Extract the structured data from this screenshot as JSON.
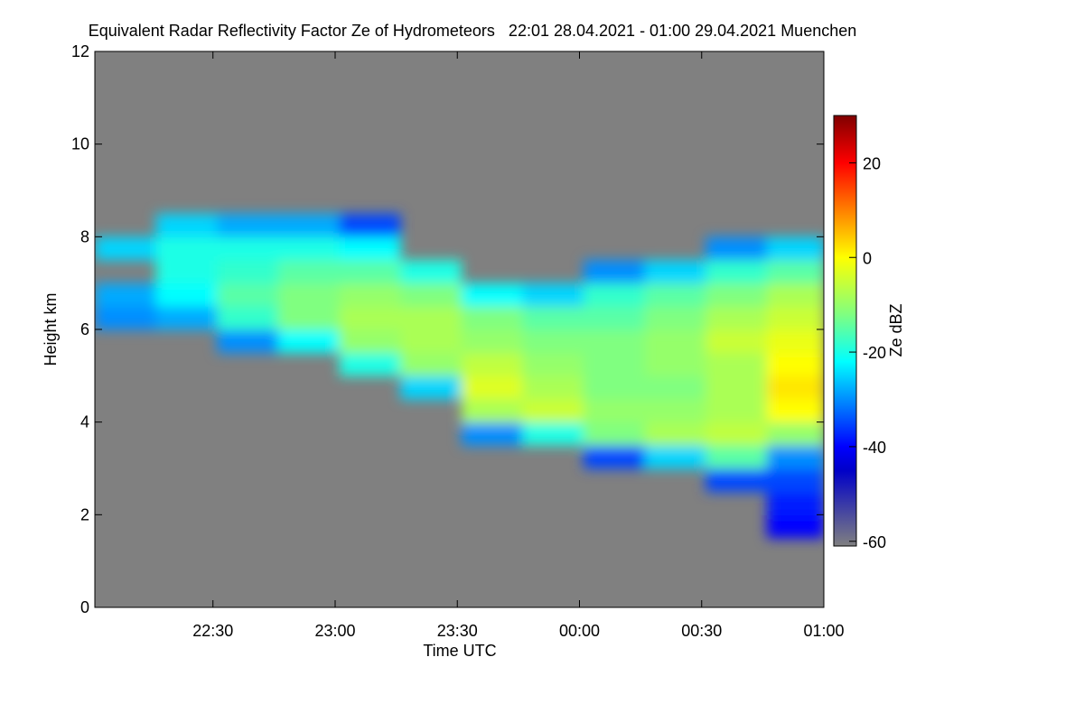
{
  "chart_data": {
    "type": "heatmap",
    "title": "Equivalent Radar Reflectivity Factor Ze of Hydrometeors   22:01 28.04.2021 - 01:00 29.04.2021 Muenchen",
    "x_label": "Time UTC",
    "y_label": "Height km",
    "colorbar_label": "Ze dBZ",
    "xlim": [
      1321,
      1500
    ],
    "xticks": [
      {
        "value": 1350,
        "label": "22:30"
      },
      {
        "value": 1380,
        "label": "23:00"
      },
      {
        "value": 1410,
        "label": "23:30"
      },
      {
        "value": 1440,
        "label": "00:00"
      },
      {
        "value": 1470,
        "label": "00:30"
      },
      {
        "value": 1500,
        "label": "01:00"
      }
    ],
    "ylim": [
      0,
      12
    ],
    "yticks": [
      0,
      2,
      4,
      6,
      8,
      10,
      12
    ],
    "x_bins": [
      1321,
      1336,
      1351,
      1366,
      1381,
      1396,
      1411,
      1426,
      1441,
      1456,
      1471,
      1486,
      1500
    ],
    "y_bins": [
      0,
      0.5,
      1,
      1.5,
      2,
      2.5,
      3,
      3.5,
      4,
      4.5,
      5,
      5.5,
      6,
      6.5,
      7,
      7.5,
      8,
      8.5,
      9,
      9.5,
      10,
      10.5,
      11,
      11.5,
      12
    ],
    "z": [
      [
        null,
        null,
        null,
        null,
        null,
        null,
        null,
        null,
        null,
        null,
        null,
        null
      ],
      [
        null,
        null,
        null,
        null,
        null,
        null,
        null,
        null,
        null,
        null,
        null,
        null
      ],
      [
        null,
        null,
        null,
        null,
        null,
        null,
        null,
        null,
        null,
        null,
        null,
        null
      ],
      [
        null,
        null,
        null,
        null,
        null,
        null,
        null,
        null,
        null,
        null,
        null,
        -40
      ],
      [
        null,
        null,
        null,
        null,
        null,
        null,
        null,
        null,
        null,
        null,
        null,
        -38
      ],
      [
        null,
        null,
        null,
        null,
        null,
        null,
        null,
        null,
        null,
        null,
        -35,
        -35
      ],
      [
        null,
        null,
        null,
        null,
        null,
        null,
        null,
        null,
        -35,
        -25,
        -15,
        -30
      ],
      [
        null,
        null,
        null,
        null,
        null,
        null,
        -30,
        -20,
        -12,
        -8,
        -6,
        -10
      ],
      [
        null,
        null,
        null,
        null,
        null,
        null,
        -8,
        -5,
        -10,
        -10,
        -8,
        0
      ],
      [
        null,
        null,
        null,
        null,
        null,
        -25,
        -3,
        -8,
        -12,
        -12,
        -8,
        2
      ],
      [
        null,
        null,
        null,
        null,
        -20,
        -10,
        -6,
        -10,
        -12,
        -10,
        -8,
        0
      ],
      [
        null,
        null,
        -30,
        -22,
        -10,
        -8,
        -10,
        -12,
        -12,
        -10,
        -5,
        -2
      ],
      [
        -30,
        -28,
        -18,
        -12,
        -8,
        -8,
        -12,
        -15,
        -15,
        -12,
        -8,
        -5
      ],
      [
        -28,
        -22,
        -15,
        -12,
        -10,
        -12,
        -22,
        -25,
        -18,
        -15,
        -12,
        -8
      ],
      [
        null,
        -20,
        -18,
        -15,
        -15,
        -20,
        null,
        null,
        -30,
        -25,
        -18,
        -15
      ],
      [
        -25,
        -20,
        -20,
        -20,
        -22,
        null,
        null,
        null,
        null,
        null,
        -30,
        -25
      ],
      [
        null,
        -25,
        -28,
        -28,
        -35,
        null,
        null,
        null,
        null,
        null,
        null,
        null
      ],
      [
        null,
        null,
        null,
        null,
        null,
        null,
        null,
        null,
        null,
        null,
        null,
        null
      ],
      [
        null,
        null,
        null,
        null,
        null,
        null,
        null,
        null,
        null,
        null,
        null,
        null
      ],
      [
        null,
        null,
        null,
        null,
        null,
        null,
        null,
        null,
        null,
        null,
        null,
        null
      ],
      [
        null,
        null,
        null,
        null,
        null,
        null,
        null,
        null,
        null,
        null,
        null,
        null
      ],
      [
        null,
        null,
        null,
        null,
        null,
        null,
        null,
        null,
        null,
        null,
        null,
        null
      ],
      [
        null,
        null,
        null,
        null,
        null,
        null,
        null,
        null,
        null,
        null,
        null,
        null
      ],
      [
        null,
        null,
        null,
        null,
        null,
        null,
        null,
        null,
        null,
        null,
        null,
        null
      ]
    ],
    "null_color": "#808080",
    "zlim": [
      -61,
      30
    ],
    "zticks": [
      -60,
      -40,
      -20,
      0,
      20
    ],
    "colorscale": [
      [
        -61,
        "#808080"
      ],
      [
        -45,
        "#0000c8"
      ],
      [
        -40,
        "#0000ff"
      ],
      [
        -22,
        "#00ffff"
      ],
      [
        -12,
        "#80ff80"
      ],
      [
        0,
        "#ffff00"
      ],
      [
        10,
        "#ff8000"
      ],
      [
        20,
        "#ff0000"
      ],
      [
        30,
        "#800000"
      ]
    ]
  }
}
